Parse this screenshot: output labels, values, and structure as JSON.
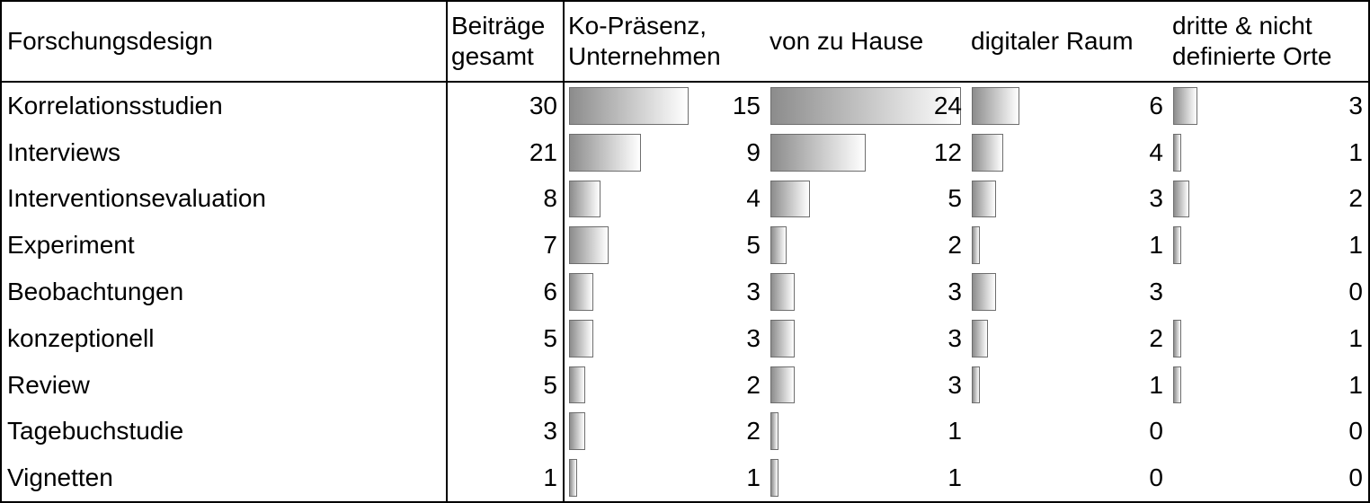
{
  "table": {
    "header": [
      "Forschungsdesign",
      "Beiträge gesamt",
      "Ko-Präsenz, Unternehmen",
      "von zu Hause",
      "digitaler Raum",
      "dritte & nicht definierte Orte"
    ],
    "rows": [
      [
        "Korrelationsstudien",
        30,
        15,
        24,
        6,
        3
      ],
      [
        "Interviews",
        21,
        9,
        12,
        4,
        1
      ],
      [
        "Interventionsevaluation",
        8,
        4,
        5,
        3,
        2
      ],
      [
        "Experiment",
        7,
        5,
        2,
        1,
        1
      ],
      [
        "Beobachtungen",
        6,
        3,
        3,
        3,
        0
      ],
      [
        "konzeptionell",
        5,
        3,
        3,
        2,
        1
      ],
      [
        "Review",
        5,
        2,
        3,
        1,
        1
      ],
      [
        "Tagebuchstudie",
        3,
        2,
        1,
        0,
        0
      ],
      [
        "Vignetten",
        1,
        1,
        1,
        0,
        0
      ]
    ]
  }
}
